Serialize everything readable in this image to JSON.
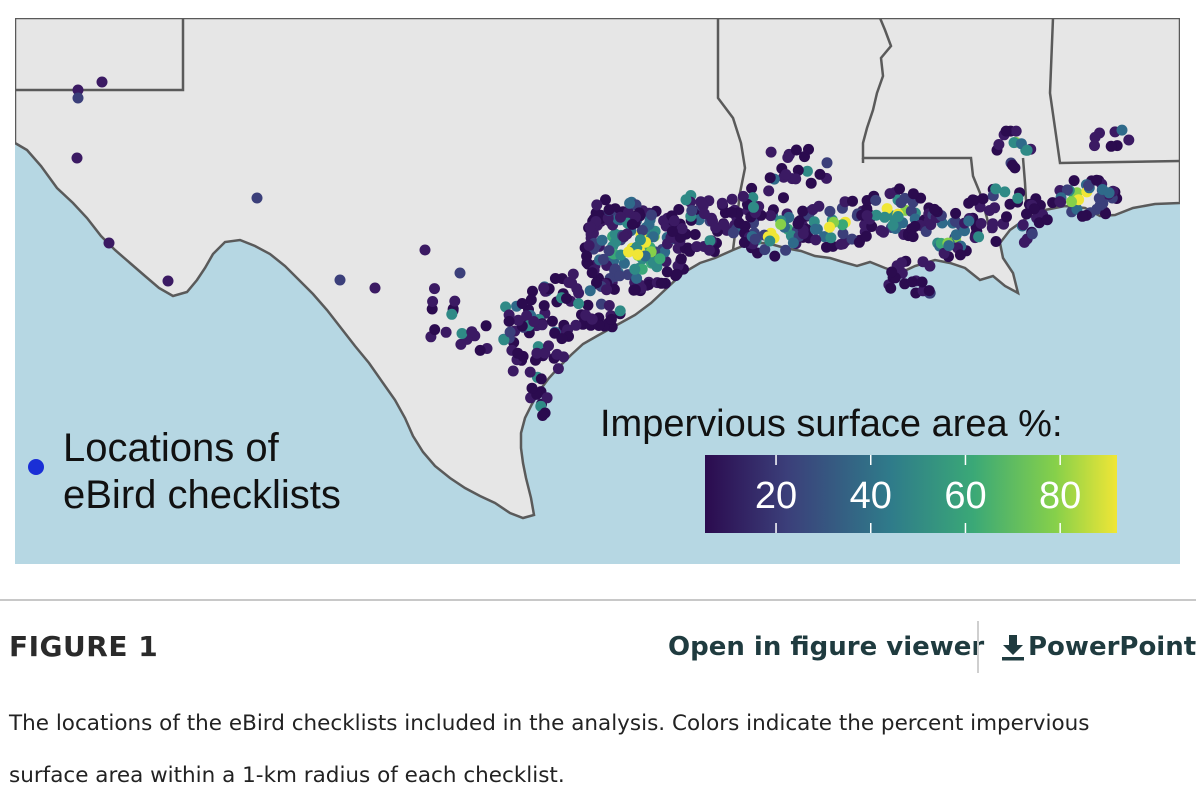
{
  "map": {
    "colors": {
      "ocean": "#b6d7e3",
      "land": "#e6e6e6",
      "border": "#5a5a5a",
      "legend_dot": "#1a2fd6"
    },
    "point_legend_lines": [
      "Locations of",
      "eBird checklists"
    ],
    "colorbar": {
      "title": "Impervious surface area %:",
      "ticks": [
        "20",
        "40",
        "60",
        "80"
      ],
      "palette": "viridis",
      "colors": [
        "#2b0b4f",
        "#3b3f7a",
        "#2f7b8a",
        "#3aa877",
        "#86d04a",
        "#f0e636"
      ]
    }
  },
  "figure_label": "FIGURE 1",
  "links": {
    "viewer": "Open in figure viewer",
    "powerpoint": "PowerPoint",
    "download_icon": "download-icon"
  },
  "caption_lines": [
    "The locations of the eBird checklists included in the analysis. Colors indicate the percent impervious",
    "surface area within a 1-km radius of each checklist."
  ]
}
